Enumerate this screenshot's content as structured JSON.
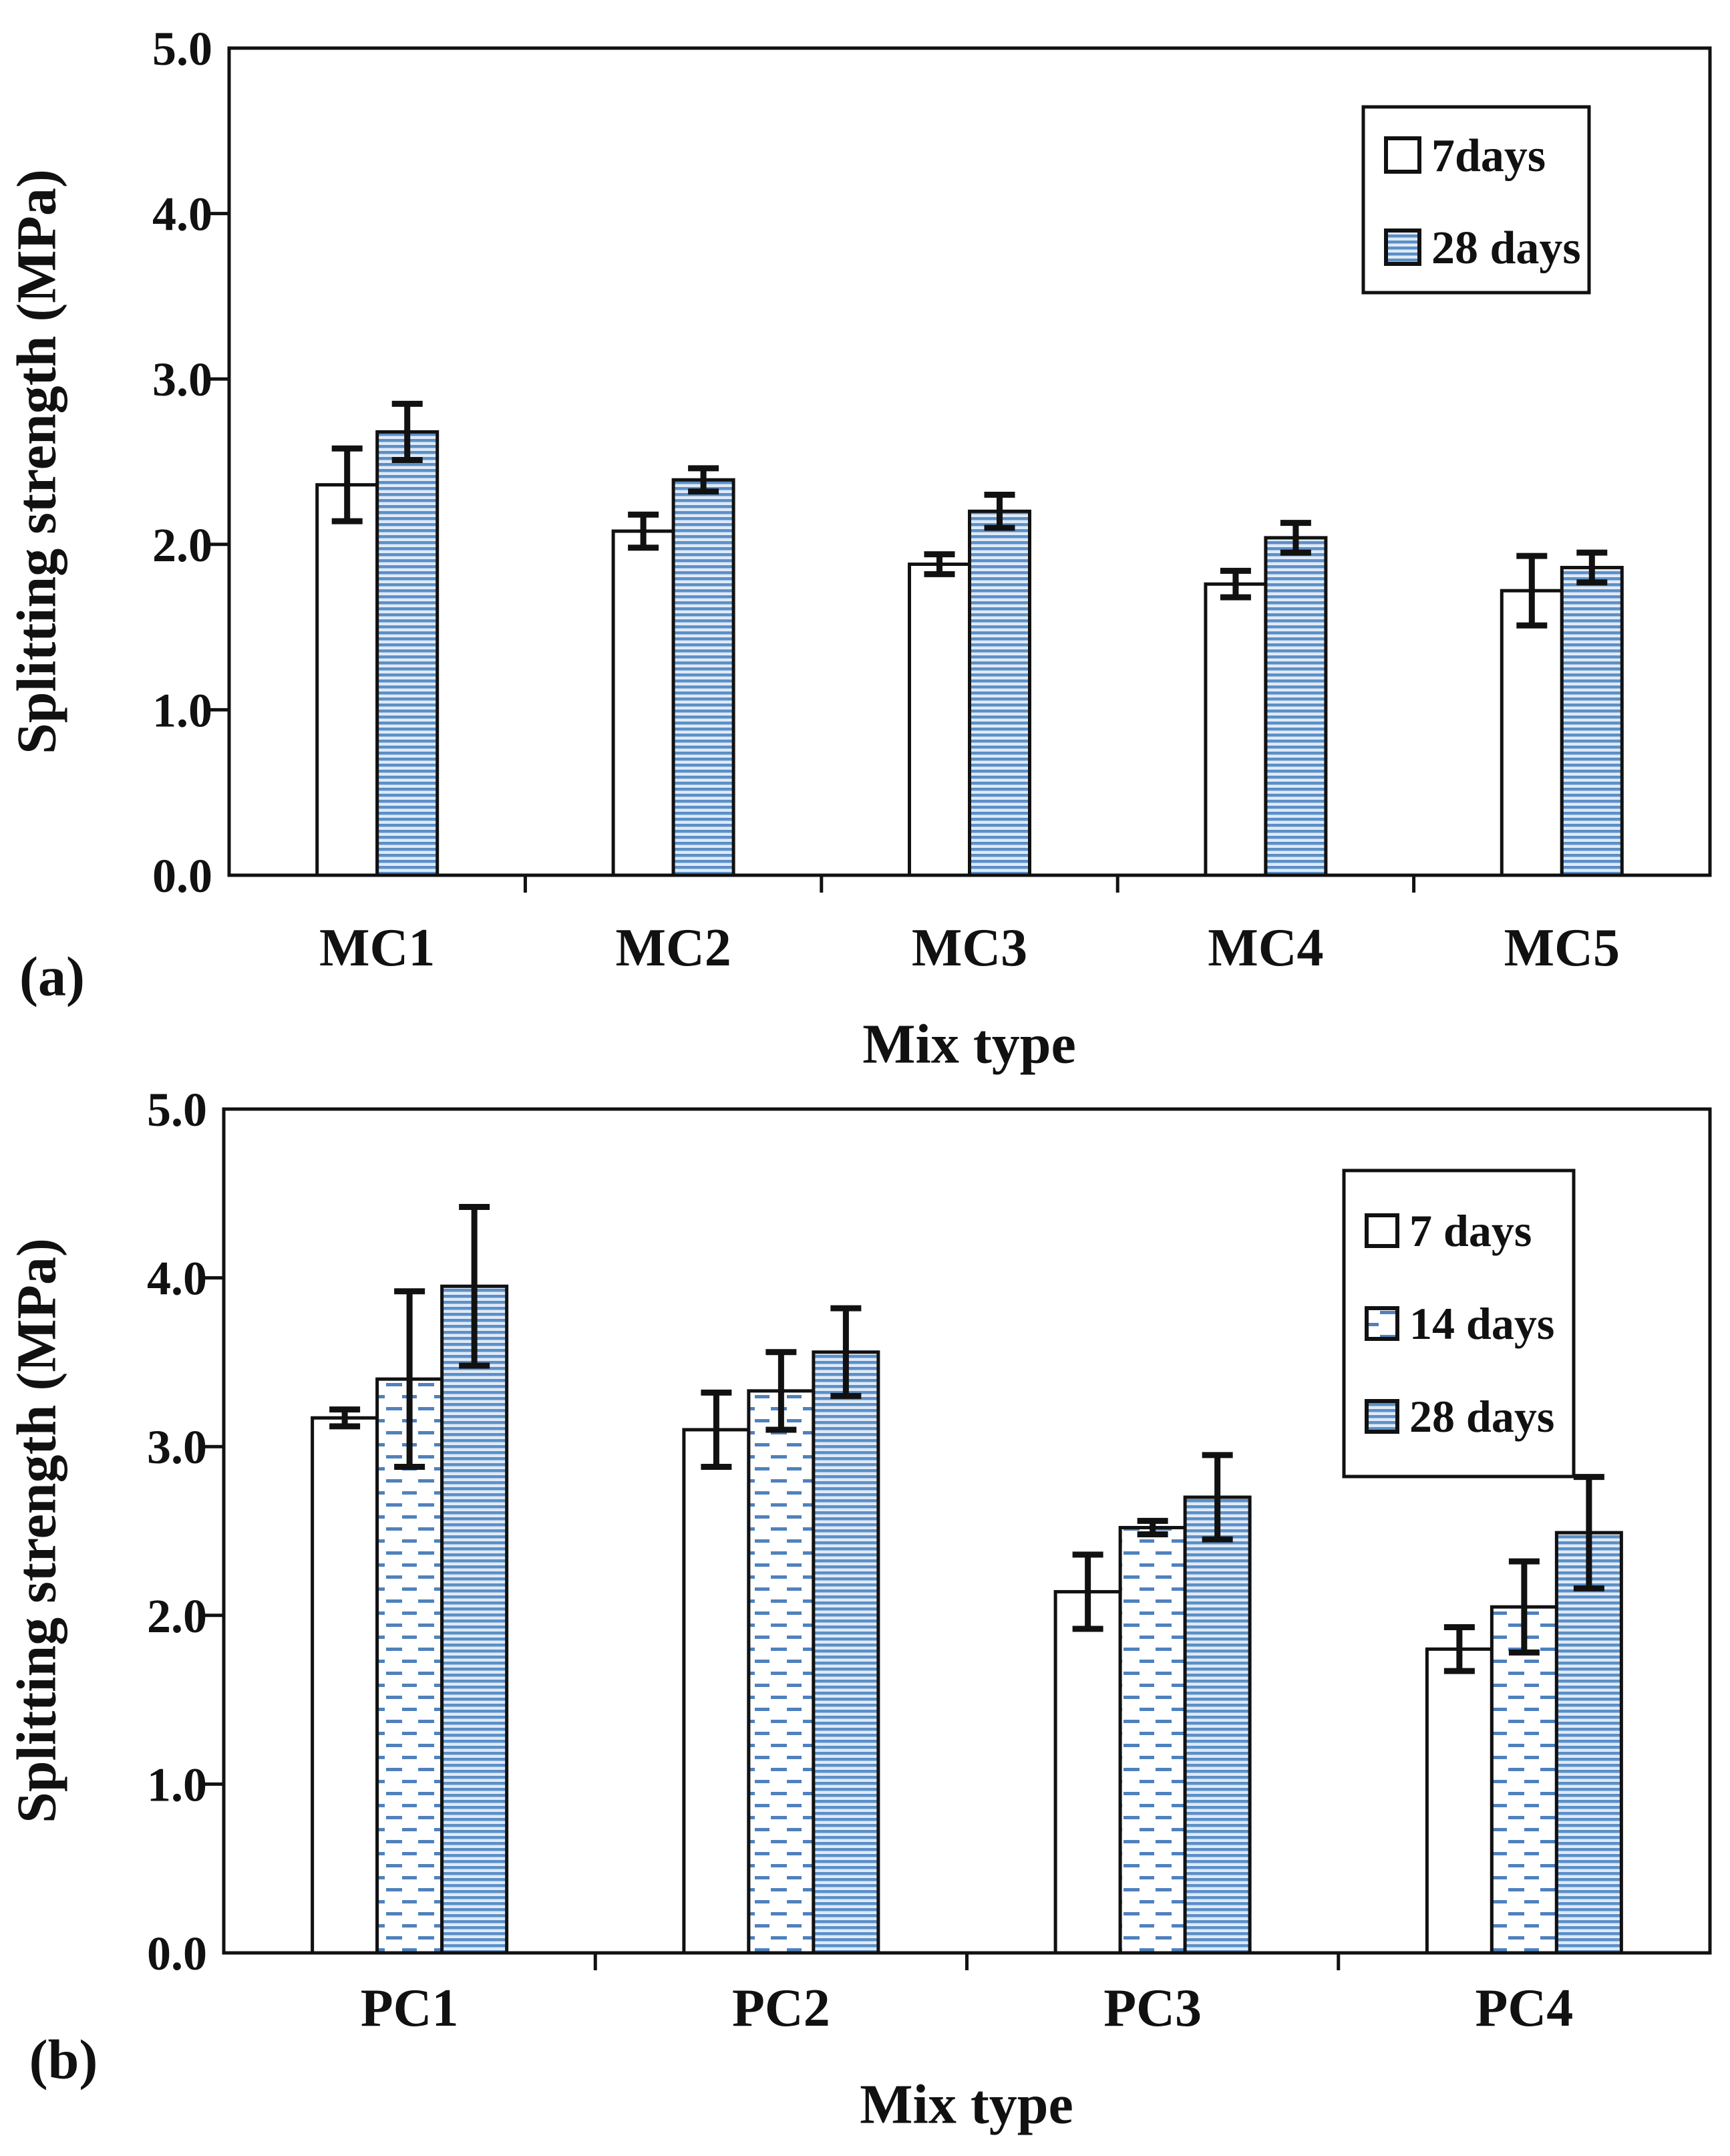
{
  "page": {
    "background": "#ffffff"
  },
  "colors": {
    "ink": "#111111",
    "pattern_blue": "#4f81bd",
    "hline_stripe": "#5b8fc7",
    "hline_bg": "#dfeaf7",
    "legend_bg": "#ffffff"
  },
  "chart_data": [
    {
      "type": "bar",
      "panel_label": "(a)",
      "xlabel": "Mix type",
      "ylabel": "Splitting strength (MPa)",
      "ylim": [
        0.0,
        5.0
      ],
      "ytick_labels": [
        "0.0",
        "1.0",
        "2.0",
        "3.0",
        "4.0",
        "5.0"
      ],
      "grid": "off",
      "legend_position": "top-right",
      "categories": [
        "MC1",
        "MC2",
        "MC3",
        "MC4",
        "MC5"
      ],
      "series": [
        {
          "name": "7days",
          "pattern": "diagonal",
          "values": [
            2.36,
            2.08,
            1.88,
            1.76,
            1.72
          ],
          "errors": [
            0.22,
            0.1,
            0.06,
            0.08,
            0.21
          ]
        },
        {
          "name": "28 days",
          "pattern": "hlines",
          "values": [
            2.68,
            2.39,
            2.2,
            2.04,
            1.86
          ],
          "errors": [
            0.17,
            0.07,
            0.1,
            0.09,
            0.09
          ]
        }
      ]
    },
    {
      "type": "bar",
      "panel_label": "(b)",
      "xlabel": "Mix type",
      "ylabel": "Splitting strength (MPa)",
      "ylim": [
        0.0,
        5.0
      ],
      "ytick_labels": [
        "0.0",
        "1.0",
        "2.0",
        "3.0",
        "4.0",
        "5.0"
      ],
      "grid": "off",
      "legend_position": "top-right",
      "categories": [
        "PC1",
        "PC2",
        "PC3",
        "PC4"
      ],
      "series": [
        {
          "name": "7 days",
          "pattern": "diagonal",
          "values": [
            3.17,
            3.1,
            2.14,
            1.8
          ],
          "errors": [
            0.05,
            0.22,
            0.22,
            0.13
          ]
        },
        {
          "name": "14 days",
          "pattern": "dashes",
          "values": [
            3.4,
            3.33,
            2.52,
            2.05
          ],
          "errors": [
            0.52,
            0.23,
            0.04,
            0.27
          ]
        },
        {
          "name": "28 days",
          "pattern": "hlines",
          "values": [
            3.95,
            3.56,
            2.7,
            2.49
          ],
          "errors": [
            0.47,
            0.26,
            0.25,
            0.33
          ]
        }
      ]
    }
  ]
}
